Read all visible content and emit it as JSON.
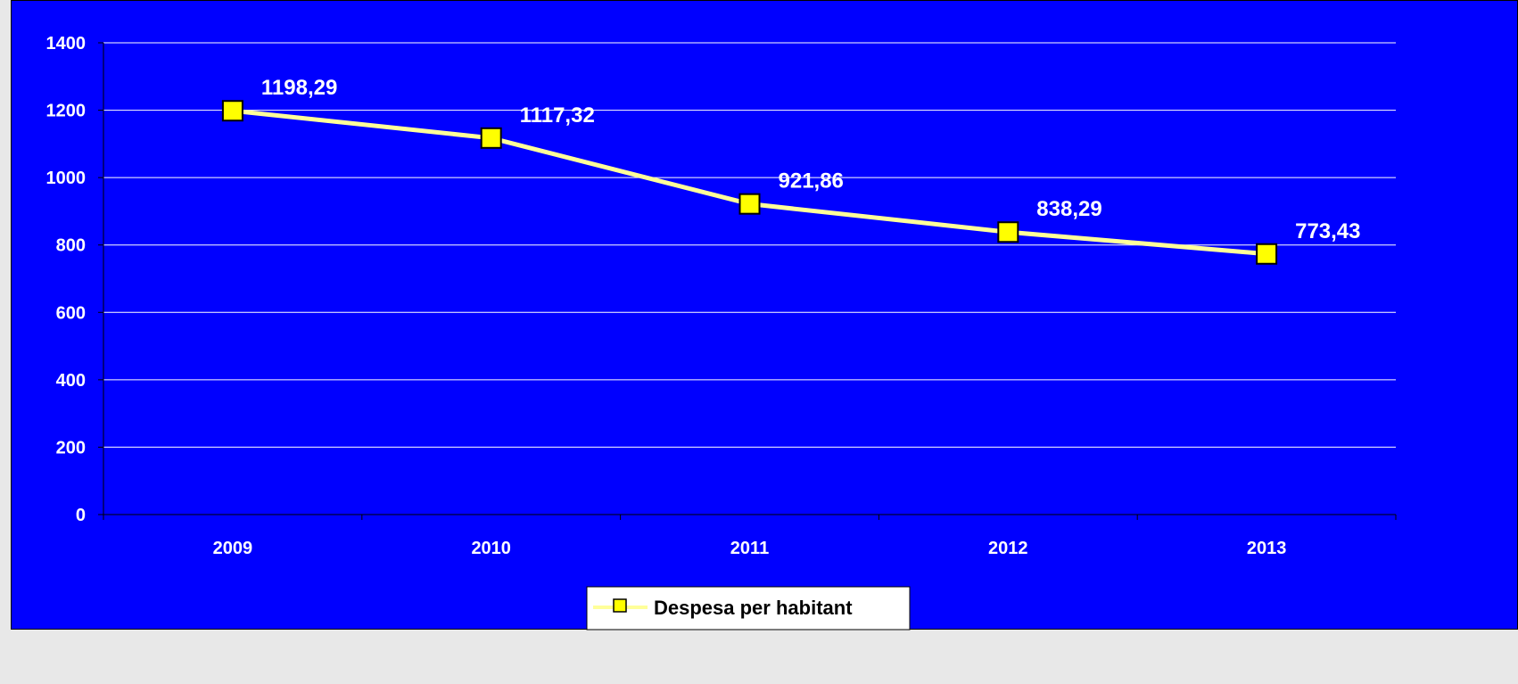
{
  "chart_data": {
    "type": "line",
    "categories": [
      "2009",
      "2010",
      "2011",
      "2012",
      "2013"
    ],
    "series": [
      {
        "name": "Despesa per habitant",
        "values": [
          1198.29,
          1117.32,
          921.86,
          838.29,
          773.43
        ],
        "labels": [
          "1198,29",
          "1117,32",
          "921,86",
          "838,29",
          "773,43"
        ]
      }
    ],
    "yticks": [
      "0",
      "200",
      "400",
      "600",
      "800",
      "1000",
      "1200",
      "1400"
    ],
    "ylim": [
      0,
      1400
    ],
    "grid": true,
    "legend_position": "bottom",
    "colors": {
      "plot_background": "#0000ff",
      "page_background": "#e8e8e8",
      "gridline": "#ffffff",
      "line": "#ffff99",
      "marker_fill": "#ffff00",
      "marker_stroke": "#000000",
      "text": "#ffffff",
      "legend_background": "#ffffff"
    },
    "marker": "square"
  }
}
